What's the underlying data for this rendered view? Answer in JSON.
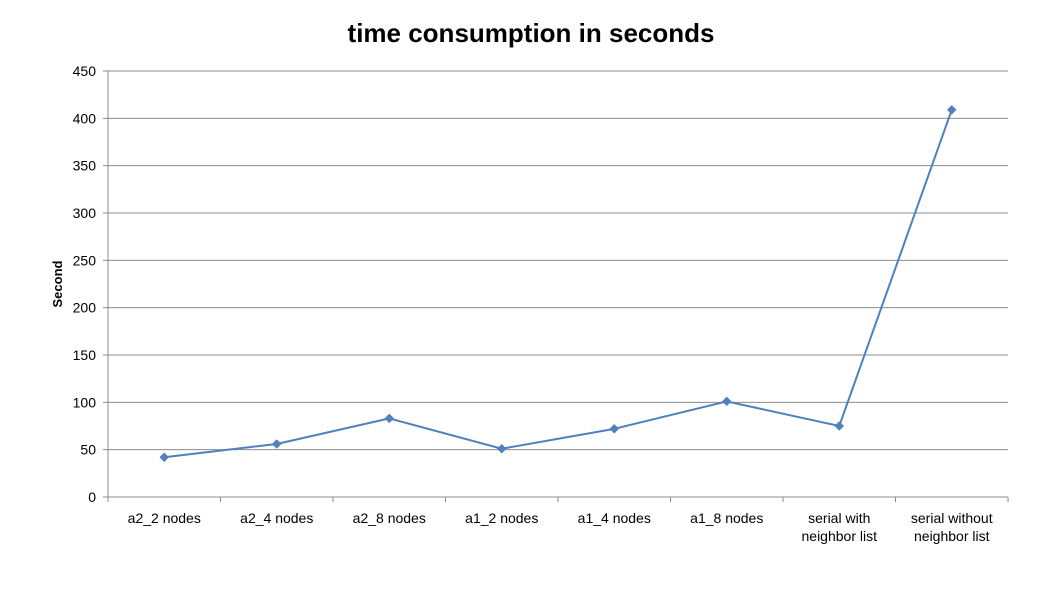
{
  "chart_data": {
    "type": "line",
    "title": "time consumption in seconds",
    "xlabel": "",
    "ylabel": "Second",
    "categories": [
      "a2_2 nodes",
      "a2_4 nodes",
      "a2_8 nodes",
      "a1_2 nodes",
      "a1_4 nodes",
      "a1_8 nodes",
      "serial with neighbor list",
      "serial without neighbor list"
    ],
    "category_lines": [
      [
        "a2_2 nodes"
      ],
      [
        "a2_4 nodes"
      ],
      [
        "a2_8 nodes"
      ],
      [
        "a1_2 nodes"
      ],
      [
        "a1_4 nodes"
      ],
      [
        "a1_8 nodes"
      ],
      [
        "serial with",
        "neighbor list"
      ],
      [
        "serial without",
        "neighbor list"
      ]
    ],
    "series": [
      {
        "values": [
          42,
          56,
          83,
          51,
          72,
          101,
          75,
          409
        ],
        "color": "#4F81BD"
      }
    ],
    "ylim": [
      0,
      450
    ],
    "yticks": [
      0,
      50,
      100,
      150,
      200,
      250,
      300,
      350,
      400,
      450
    ],
    "grid": true,
    "legend": "none",
    "marker": "diamond"
  }
}
